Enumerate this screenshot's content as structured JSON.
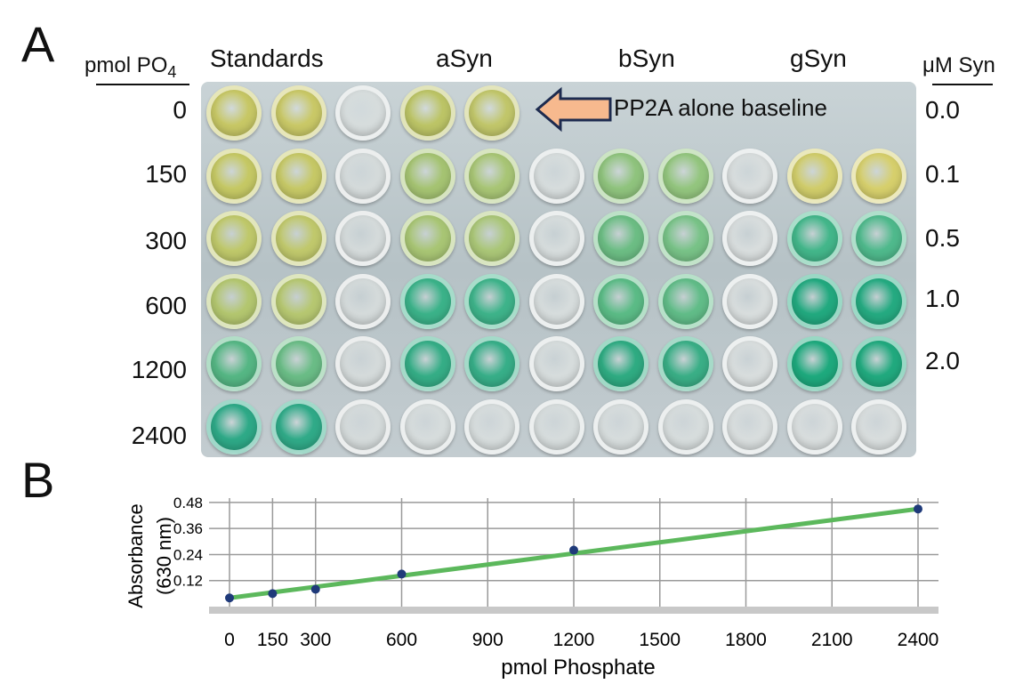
{
  "panel_a": {
    "letter": "A",
    "left_header_main": "pmol PO",
    "left_header_sub": "4",
    "column_groups": [
      "Standards",
      "aSyn",
      "bSyn",
      "gSyn"
    ],
    "right_header": "μM Syn",
    "row_labels": [
      "0",
      "150",
      "300",
      "600",
      "1200",
      "2400"
    ],
    "right_labels": [
      "0.0",
      "0.1",
      "0.5",
      "1.0",
      "2.0"
    ],
    "annotation": "PP2A alone baseline",
    "plate_colors": [
      [
        "#c7c765",
        "#c9c867",
        "#d6dcdc",
        "#bcc466",
        "#c1c66a",
        "",
        "",
        "",
        "",
        "",
        ""
      ],
      [
        "#c5c864",
        "#c6c866",
        "#d4dada",
        "#a5c372",
        "#a8c575",
        "#d6dcdc",
        "#8fc37d",
        "#93c57e",
        "#d8dddd",
        "#d0cc6a",
        "#d6cf6c"
      ],
      [
        "#bfc86a",
        "#c0c86c",
        "#d4dada",
        "#a8c574",
        "#aac677",
        "#d6dcdc",
        "#6cbd84",
        "#78c287",
        "#d8dddd",
        "#43b68a",
        "#4fb98c"
      ],
      [
        "#b3c66f",
        "#b6c771",
        "#d4dada",
        "#3bb289",
        "#3eb38a",
        "#d6dcdc",
        "#5bbb86",
        "#61bc88",
        "#d8dddd",
        "#22a97f",
        "#25aa81"
      ],
      [
        "#55b684",
        "#6abc86",
        "#d4dada",
        "#35ad86",
        "#37ae88",
        "#d6dcdc",
        "#2fab82",
        "#3aae86",
        "#d8dddd",
        "#1ea97d",
        "#21a97e"
      ],
      [
        "#2ea987",
        "#30aa88",
        "#d4dada",
        "#d6dcdc",
        "#d6dcdc",
        "#d6dcdc",
        "#d6dcdc",
        "#d6dcdc",
        "#d8dddd",
        "#d8dddd",
        "#d8dddd"
      ]
    ]
  },
  "panel_b": {
    "letter": "B"
  },
  "chart_data": {
    "type": "scatter",
    "title": "",
    "xlabel": "pmol Phosphate",
    "ylabel_line1": "Absorbance",
    "ylabel_line2": "(630 nm)",
    "x": [
      0,
      150,
      300,
      600,
      1200,
      2400
    ],
    "y": [
      0.04,
      0.06,
      0.08,
      0.15,
      0.26,
      0.45
    ],
    "fit_line": {
      "x": [
        0,
        2400
      ],
      "y": [
        0.04,
        0.45
      ],
      "color": "#5cb85c"
    },
    "point_color": "#1f3a7a",
    "xlim": [
      0,
      2400
    ],
    "ylim": [
      0,
      0.5
    ],
    "xticks": [
      0,
      150,
      300,
      600,
      900,
      1200,
      1500,
      1800,
      2100,
      2400
    ],
    "yticks": [
      0.12,
      0.24,
      0.36,
      0.48
    ],
    "ytick_labels": [
      "0.12",
      "0.24",
      "0.36",
      "0.48"
    ],
    "grid": true
  }
}
